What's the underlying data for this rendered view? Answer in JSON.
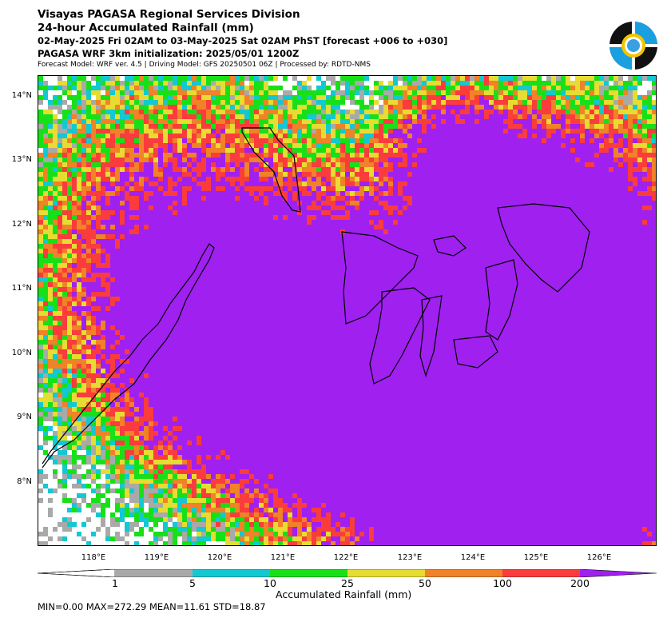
{
  "header": {
    "line1": "Visayas PAGASA Regional Services Division",
    "line2": "24-hour Accumulated Rainfall (mm)",
    "line3": "02-May-2025 Fri 02AM to 03-May-2025 Sat 02AM PhST [forecast +006 to +030]",
    "line4": "PAGASA WRF 3km initialization: 2025/05/01 1200Z",
    "line5": "Forecast Model: WRF ver. 4.5 | Driving Model: GFS 20250501 06Z | Processed by: RDTD-NMS"
  },
  "map": {
    "lon_range": [
      117.0,
      126.8
    ],
    "lat_range": [
      7.0,
      14.3
    ],
    "lat_labels": [
      "14°N",
      "13°N",
      "12°N",
      "11°N",
      "10°N",
      "9°N",
      "8°N"
    ],
    "lon_labels": [
      "118°E",
      "119°E",
      "120°E",
      "121°E",
      "122°E",
      "123°E",
      "124°E",
      "125°E",
      "126°E"
    ]
  },
  "colorbar": {
    "title": "Accumulated Rainfall (mm)",
    "ticks": [
      "1",
      "5",
      "10",
      "25",
      "50",
      "100",
      "200"
    ],
    "colors": [
      "#ffffff",
      "#a9a9a9",
      "#12c8d2",
      "#18e018",
      "#e6dc32",
      "#f08228",
      "#fa3c3c",
      "#a020f0"
    ]
  },
  "stats": {
    "text": "MIN=0.00   MAX=272.29   MEAN=11.61   STD=18.87"
  }
}
